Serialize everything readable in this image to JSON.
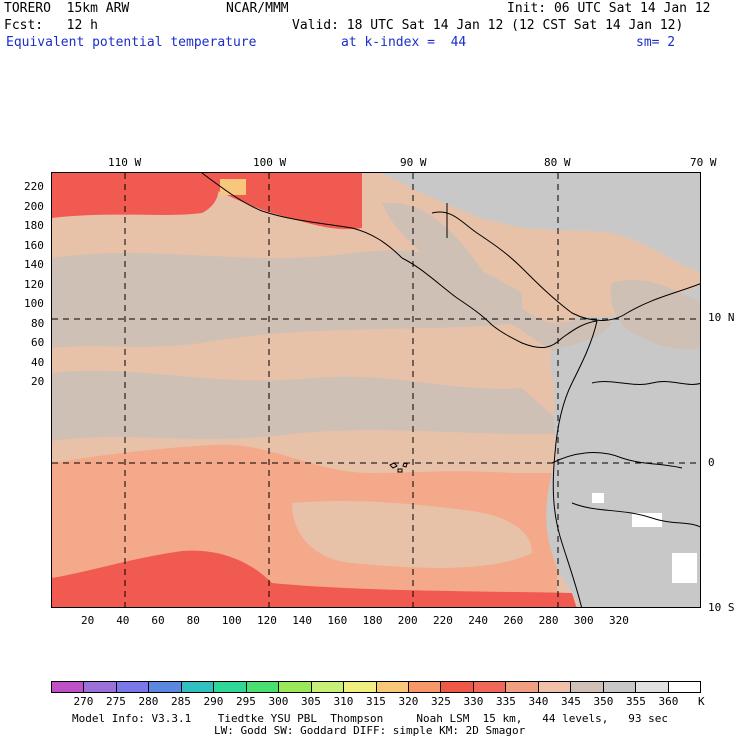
{
  "header": {
    "model_name": "TORERO  15km ARW",
    "center": "NCAR/MMM",
    "init": "Init: 06 UTC Sat 14 Jan 12",
    "fcst": "Fcst:   12 h",
    "valid": "Valid: 18 UTC Sat 14 Jan 12 (12 CST Sat 14 Jan 12)",
    "field": "Equivalent potential temperature",
    "level": "at k-index =  44",
    "smoothing": "sm= 2"
  },
  "map": {
    "lon_labels": [
      "110 W",
      "100 W",
      "90 W",
      "80 W",
      "70 W"
    ],
    "lat_labels": [
      "10 N",
      "0",
      "10 S"
    ],
    "y_ticks": [
      "220",
      "200",
      "180",
      "160",
      "140",
      "120",
      "100",
      "80",
      "60",
      "40",
      "20"
    ],
    "x_ticks": [
      "20",
      "40",
      "60",
      "80",
      "100",
      "120",
      "140",
      "160",
      "180",
      "200",
      "220",
      "240",
      "260",
      "280",
      "300",
      "320"
    ],
    "colors": {
      "coast": "#000000",
      "grid": "#000000",
      "warm_ocean": "#f4a98a",
      "hot": "#f05a50",
      "hotter": "#f28e6e",
      "mild": "#e8c2a8",
      "cool": "#cfc0b5",
      "land_gray": "#c8c8c8",
      "white_patch": "#ffffff",
      "yellowish": "#f6c77c"
    }
  },
  "colorbar": {
    "labels": [
      "270",
      "275",
      "280",
      "285",
      "290",
      "295",
      "300",
      "305",
      "310",
      "315",
      "320",
      "325",
      "330",
      "335",
      "340",
      "345",
      "350",
      "355",
      "360"
    ],
    "unit": "K",
    "colors": [
      "#c050c8",
      "#9b70d8",
      "#7a78e8",
      "#5a88e0",
      "#30c0c0",
      "#30d898",
      "#48e070",
      "#98e858",
      "#c8f078",
      "#f0f080",
      "#f8c878",
      "#f89868",
      "#f05848",
      "#f06858",
      "#f0a080",
      "#f0c0a8",
      "#d0c0b8",
      "#c8c8c8",
      "#e0e0e0",
      "#ffffff"
    ]
  },
  "footer": {
    "line1": "Model Info: V3.3.1    Tiedtke YSU PBL  Thompson     Noah LSM  15 km,   44 levels,   93 sec",
    "line2": "LW: Godd SW: Goddard DIFF: simple KM: 2D Smagor"
  }
}
